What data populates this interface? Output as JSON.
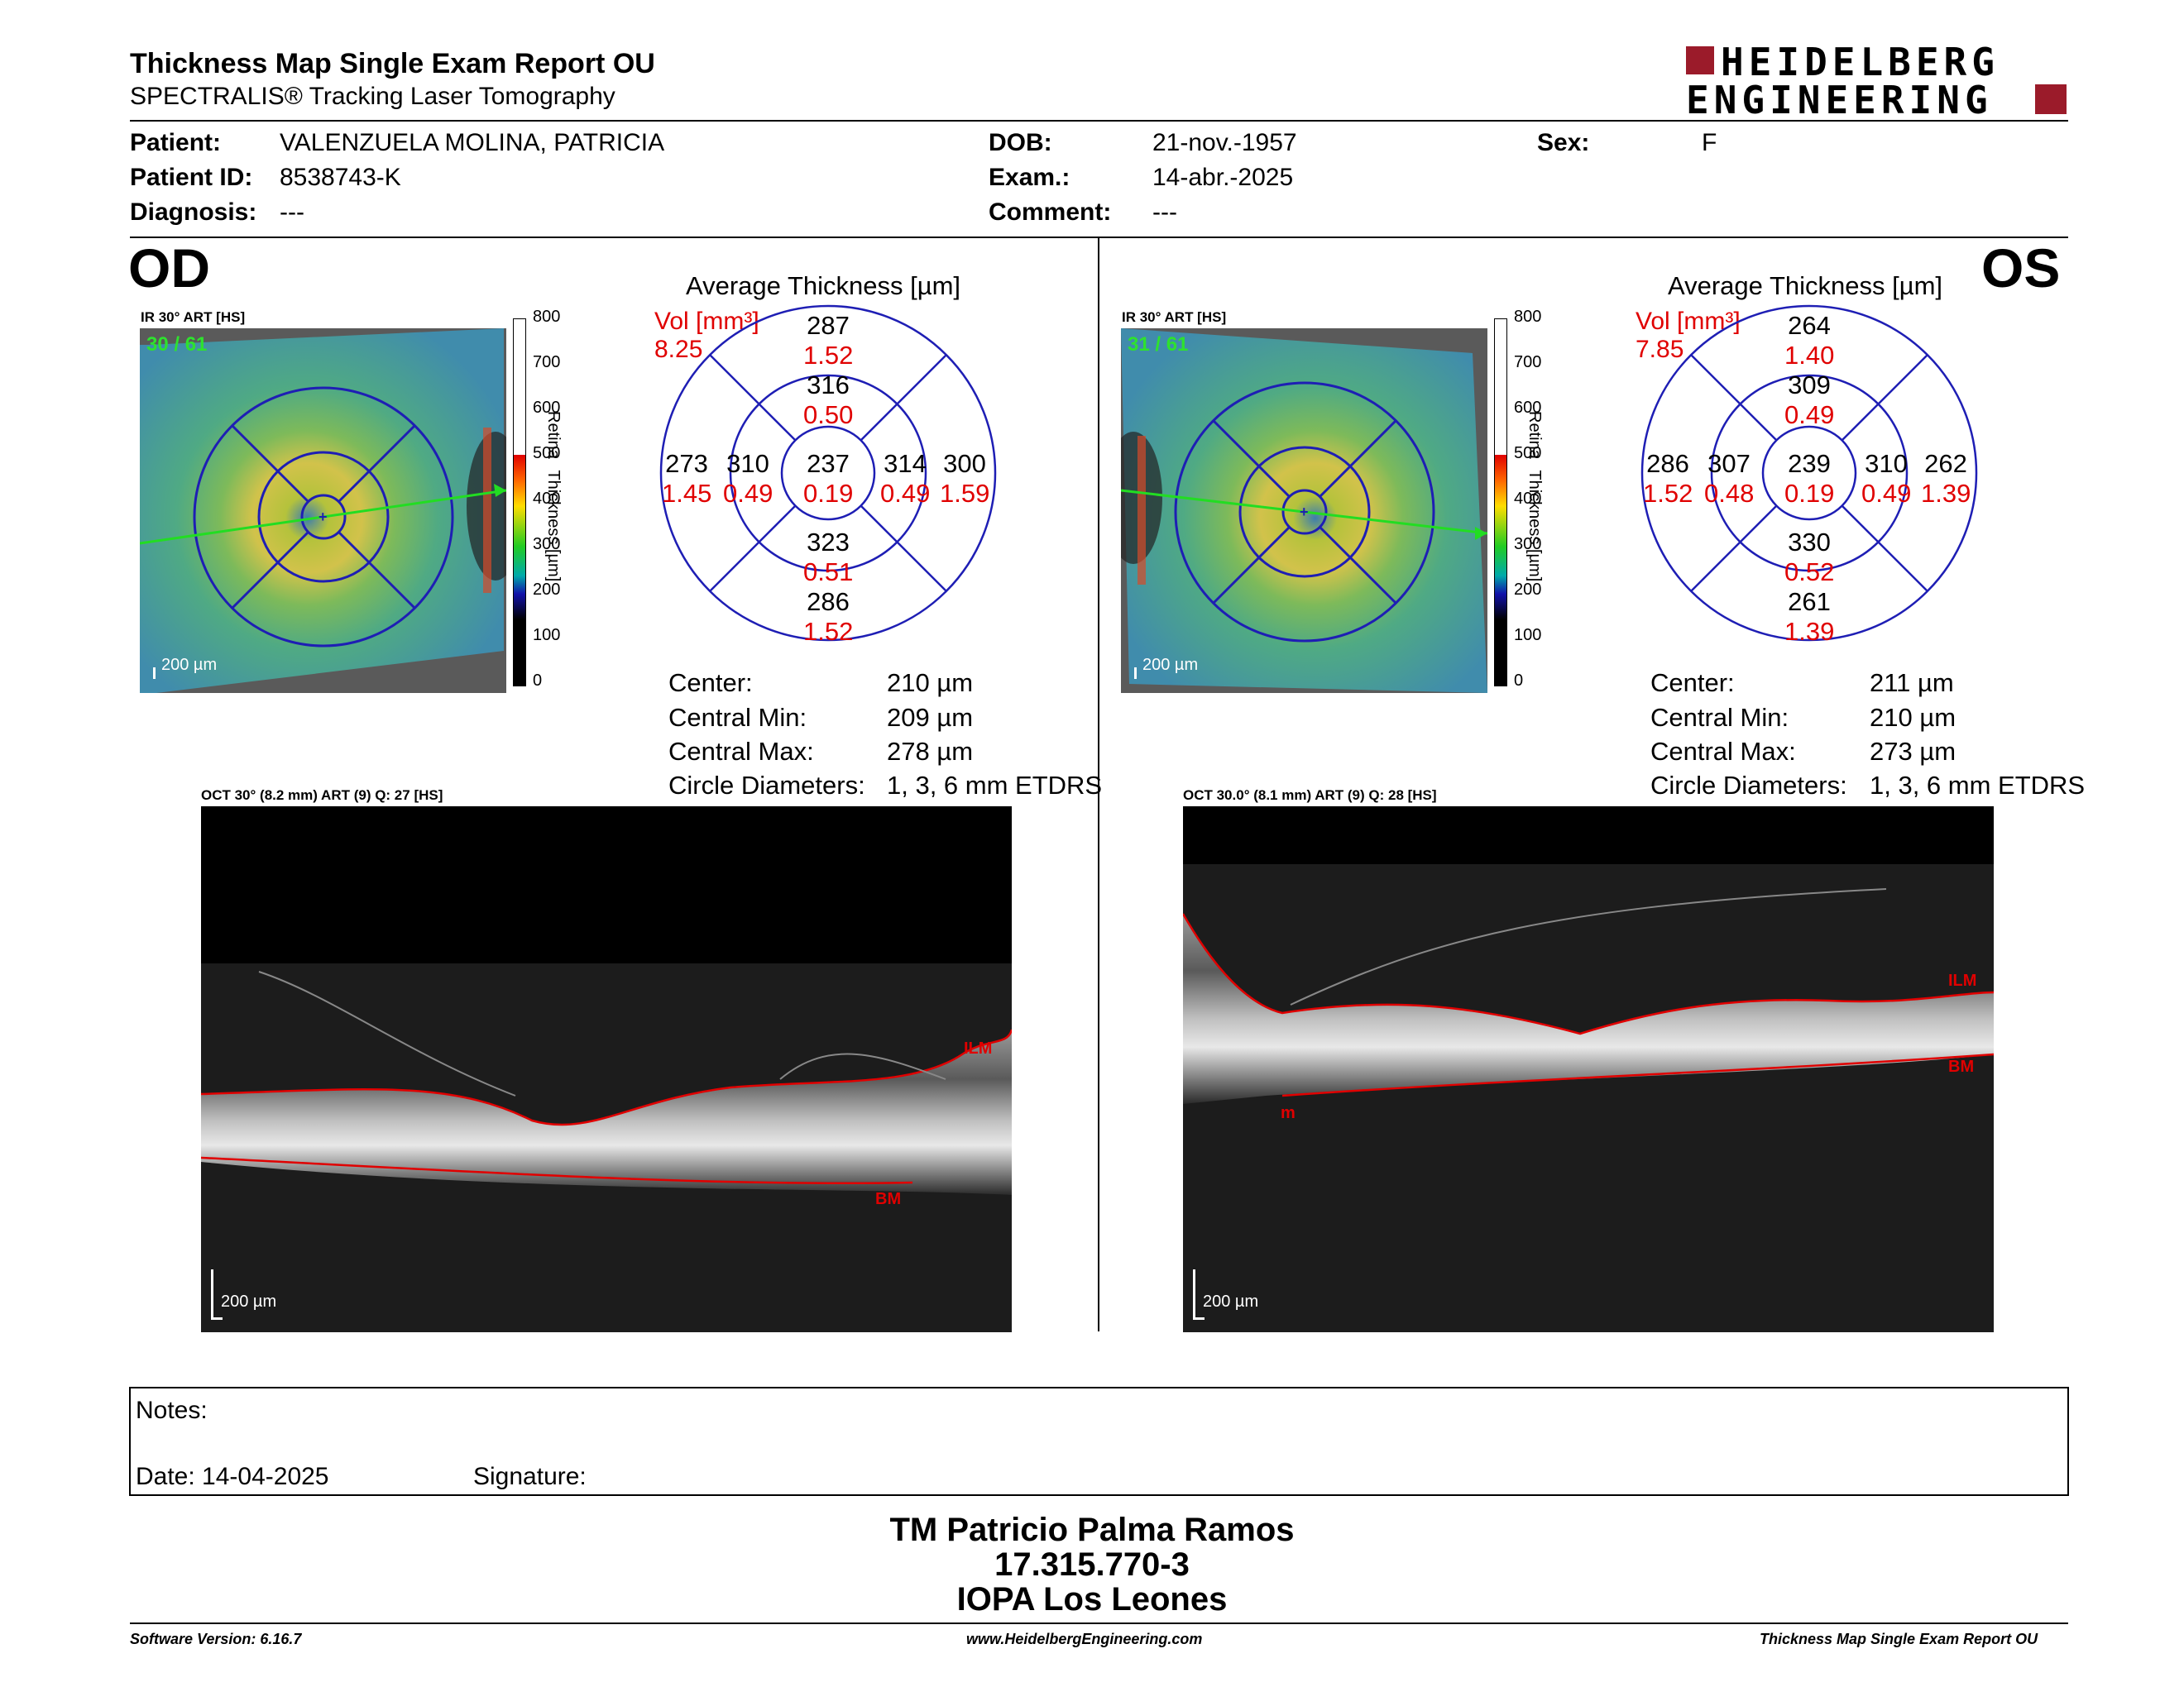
{
  "header": {
    "title": "Thickness Map Single Exam Report OU",
    "subtitle": "SPECTRALIS® Tracking Laser Tomography",
    "logo_line1": "HEIDELBERG",
    "logo_line2": "ENGINEERING"
  },
  "patient": {
    "patient_label": "Patient:",
    "patient_value": "VALENZUELA MOLINA, PATRICIA",
    "id_label": "Patient ID:",
    "id_value": "8538743-K",
    "diagnosis_label": "Diagnosis:",
    "diagnosis_value": "---",
    "dob_label": "DOB:",
    "dob_value": "21-nov.-1957",
    "exam_label": "Exam.:",
    "exam_value": "14-abr.-2025",
    "comment_label": "Comment:",
    "comment_value": "---",
    "sex_label": "Sex:",
    "sex_value": "F"
  },
  "od": {
    "eye": "OD",
    "ir_label": "IR 30° ART [HS]",
    "frames": "30 / 61",
    "scale": "200 µm",
    "chart_title": "Average Thickness [µm]",
    "vol_label": "Vol [mm³]",
    "vol_total": "8.25",
    "sectors": {
      "outer_sup": {
        "t": "287",
        "v": "1.52"
      },
      "inner_sup": {
        "t": "316",
        "v": "0.50"
      },
      "outer_temp": {
        "t": "273",
        "v": "1.45"
      },
      "inner_temp": {
        "t": "310",
        "v": "0.49"
      },
      "center": {
        "t": "237",
        "v": "0.19"
      },
      "inner_nas": {
        "t": "314",
        "v": "0.49"
      },
      "outer_nas": {
        "t": "300",
        "v": "1.59"
      },
      "inner_inf": {
        "t": "323",
        "v": "0.51"
      },
      "outer_inf": {
        "t": "286",
        "v": "1.52"
      }
    },
    "stats": {
      "center_l": "Center:",
      "center_v": "210 µm",
      "min_l": "Central Min:",
      "min_v": "209 µm",
      "max_l": "Central Max:",
      "max_v": "278 µm",
      "diam_l": "Circle Diameters:",
      "diam_v": "1, 3, 6 mm ETDRS"
    },
    "oct_label": "OCT 30° (8.2 mm) ART (9) Q: 27 [HS]",
    "oct_scale": "200 µm",
    "ilm": "ILM",
    "bm": "BM"
  },
  "os": {
    "eye": "OS",
    "ir_label": "IR 30° ART [HS]",
    "frames": "31 / 61",
    "scale": "200 µm",
    "chart_title": "Average Thickness [µm]",
    "vol_label": "Vol [mm³]",
    "vol_total": "7.85",
    "sectors": {
      "outer_sup": {
        "t": "264",
        "v": "1.40"
      },
      "inner_sup": {
        "t": "309",
        "v": "0.49"
      },
      "outer_temp": {
        "t": "286",
        "v": "1.52"
      },
      "inner_temp": {
        "t": "307",
        "v": "0.48"
      },
      "center": {
        "t": "239",
        "v": "0.19"
      },
      "inner_nas": {
        "t": "310",
        "v": "0.49"
      },
      "outer_nas": {
        "t": "262",
        "v": "1.39"
      },
      "inner_inf": {
        "t": "330",
        "v": "0.52"
      },
      "outer_inf": {
        "t": "261",
        "v": "1.39"
      }
    },
    "stats": {
      "center_l": "Center:",
      "center_v": "211 µm",
      "min_l": "Central Min:",
      "min_v": "210 µm",
      "max_l": "Central Max:",
      "max_v": "273 µm",
      "diam_l": "Circle Diameters:",
      "diam_v": "1, 3, 6 mm ETDRS"
    },
    "oct_label": "OCT 30.0° (8.1 mm) ART (9) Q: 28 [HS]",
    "oct_scale": "200 µm",
    "ilm": "ILM",
    "bm": "BM",
    "m": "m"
  },
  "colorbar": {
    "ticks": [
      "800",
      "700",
      "600",
      "500",
      "400",
      "300",
      "200",
      "100",
      "0"
    ],
    "label_word1": "Retina",
    "label_word2": "Thickness [µm]"
  },
  "notes": {
    "notes_label": "Notes:",
    "date_label": "Date: 14-04-2025",
    "signature_label": "Signature:"
  },
  "signature": {
    "name": "TM Patricio Palma Ramos",
    "rut": "17.315.770-3",
    "institution": "IOPA Los Leones"
  },
  "footer": {
    "software": "Software Version: 6.16.7",
    "website": "www.HeidelbergEngineering.com",
    "report": "Thickness Map Single Exam Report OU"
  },
  "colors": {
    "accent_red": "#e00000",
    "logo_red": "#9b1b2a",
    "etdrs_blue": "#1e1eb4"
  }
}
